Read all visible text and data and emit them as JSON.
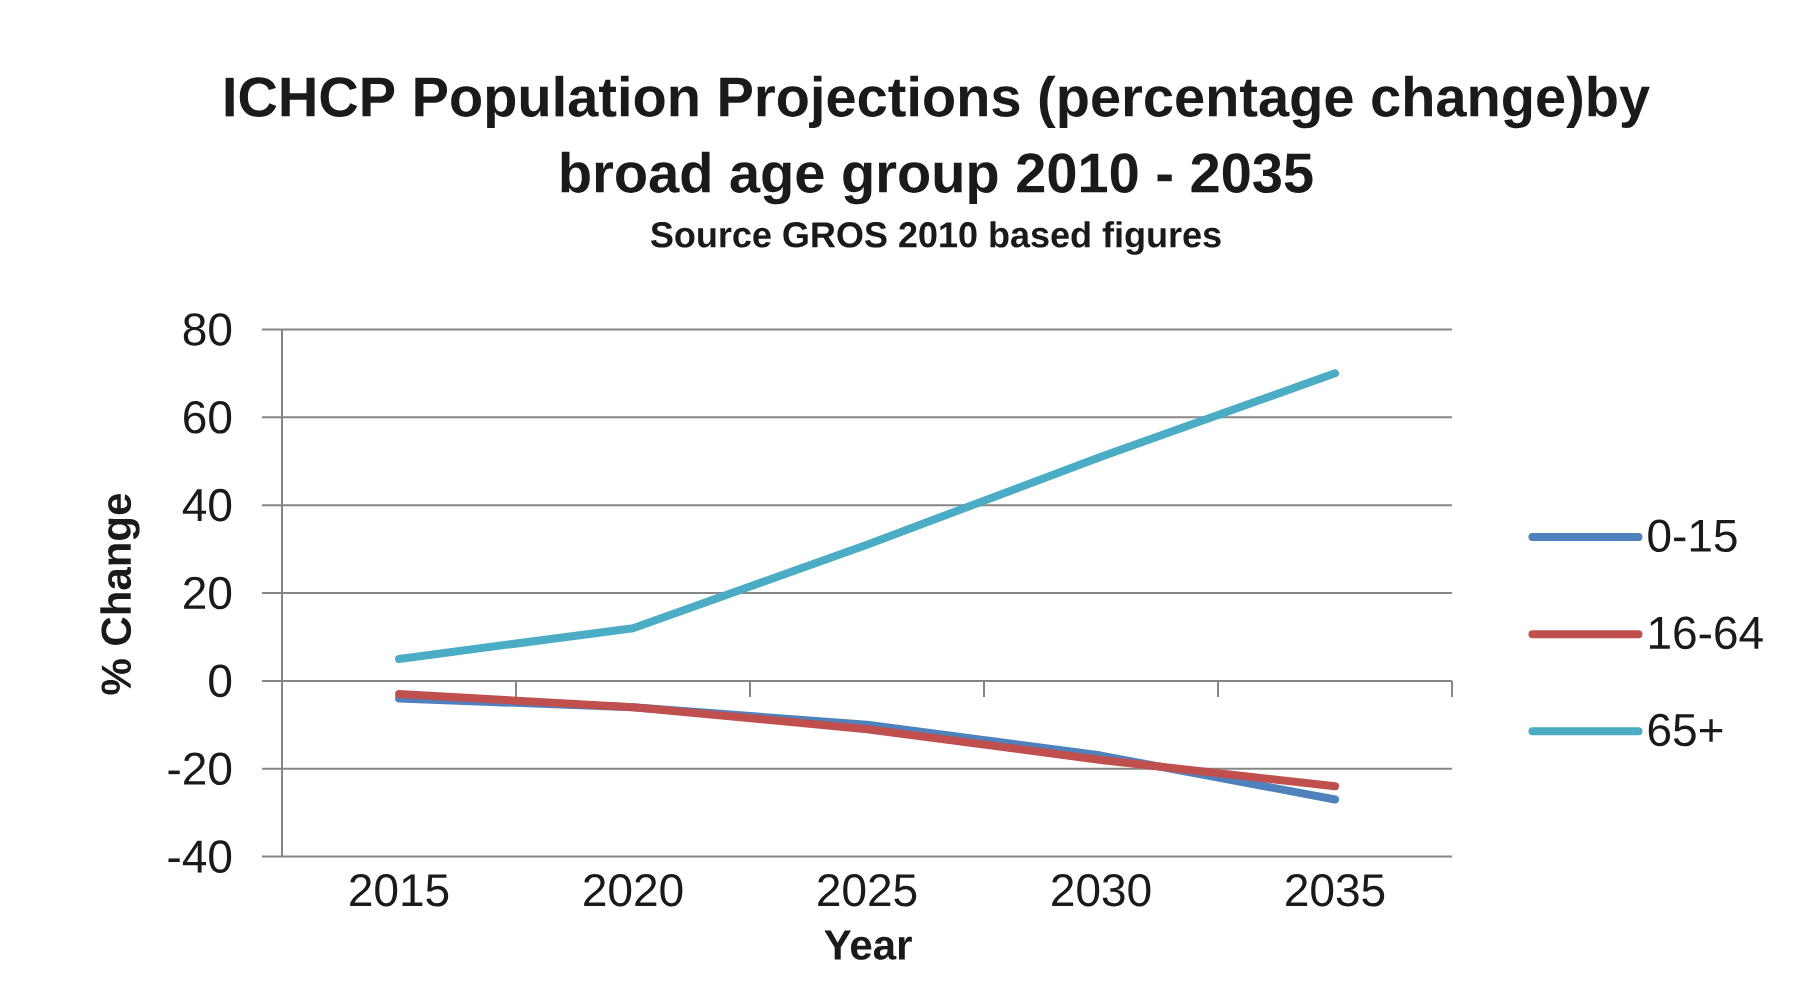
{
  "chart_data": {
    "type": "line",
    "title": "ICHCP Population Projections (percentage change)by broad age group 2010 - 2035",
    "subtitle": "Source GROS 2010 based figures",
    "xlabel": "Year",
    "ylabel": "% Change",
    "categories": [
      "2015",
      "2020",
      "2025",
      "2030",
      "2035"
    ],
    "series": [
      {
        "name": "0-15",
        "color": "#4f81bd",
        "values": [
          -4,
          -6,
          -10,
          -17,
          -27
        ]
      },
      {
        "name": "16-64",
        "color": "#c0504d",
        "values": [
          -3,
          -6,
          -11,
          -18,
          -24
        ]
      },
      {
        "name": "65+",
        "color": "#4bacc6",
        "values": [
          5,
          12,
          31,
          51,
          70
        ]
      }
    ],
    "ylim": [
      -40,
      80
    ],
    "yticks": [
      -40,
      -20,
      0,
      20,
      40,
      60,
      80
    ],
    "grid": "y",
    "legend": "right"
  }
}
